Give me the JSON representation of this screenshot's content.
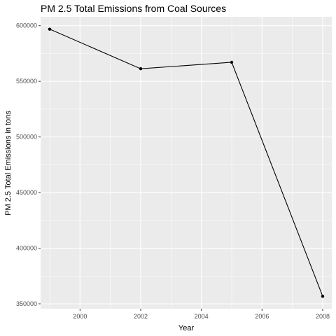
{
  "chart_data": {
    "type": "line",
    "title": "PM 2.5 Total Emissions from Coal Sources",
    "xlabel": "Year",
    "ylabel": "PM 2.5 Total Emissions in tons",
    "x": [
      1999,
      2002,
      2005,
      2008
    ],
    "series": [
      {
        "values": [
          596900,
          561300,
          567100,
          356700
        ]
      }
    ],
    "xlim": [
      1998.7,
      2008.3
    ],
    "ylim": [
      345600,
      608000
    ],
    "x_ticks": [
      2000,
      2002,
      2004,
      2006,
      2008
    ],
    "x_tick_labels": [
      "2000",
      "2002",
      "2004",
      "2006",
      "2008"
    ],
    "y_ticks": [
      350000,
      400000,
      450000,
      500000,
      550000,
      600000
    ],
    "y_tick_labels": [
      "350000",
      "400000",
      "450000",
      "500000",
      "550000",
      "600000"
    ],
    "grid": true,
    "colors": {
      "panel_background": "#ebebeb",
      "grid_major": "#ffffff",
      "line": "#000000",
      "point": "#000000",
      "tick_label": "#4d4d4d"
    }
  }
}
